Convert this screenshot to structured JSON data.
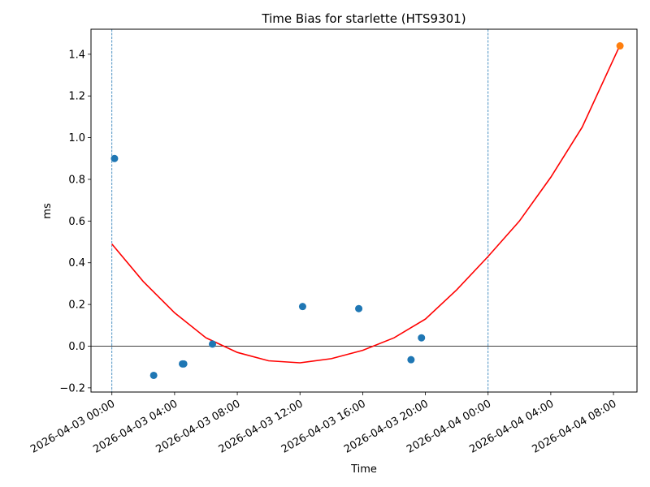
{
  "chart_data": {
    "type": "scatter",
    "title": "Time Bias for starlette (HTS9301)",
    "xlabel": "Time",
    "ylabel": "ms",
    "x_ticks": [
      "2026-04-03 00:00",
      "2026-04-03 04:00",
      "2026-04-03 08:00",
      "2026-04-03 12:00",
      "2026-04-03 16:00",
      "2026-04-03 20:00",
      "2026-04-04 00:00",
      "2026-04-04 04:00",
      "2026-04-04 08:00"
    ],
    "y_ticks": [
      "−0.2",
      "0.0",
      "0.2",
      "0.4",
      "0.6",
      "0.8",
      "1.0",
      "1.2",
      "1.4"
    ],
    "xlim": [
      "2026-04-02 22:40",
      "2026-04-04 09:30"
    ],
    "ylim": [
      -0.22,
      1.52
    ],
    "grid": false,
    "measured_points": [
      {
        "x": "2026-04-03 00:10",
        "y": 0.9
      },
      {
        "x": "2026-04-03 02:40",
        "y": -0.14
      },
      {
        "x": "2026-04-03 04:30",
        "y": -0.085
      },
      {
        "x": "2026-04-03 04:35",
        "y": -0.085
      },
      {
        "x": "2026-04-03 06:25",
        "y": 0.01
      },
      {
        "x": "2026-04-03 12:10",
        "y": 0.19
      },
      {
        "x": "2026-04-03 15:45",
        "y": 0.18
      },
      {
        "x": "2026-04-03 19:05",
        "y": -0.065
      },
      {
        "x": "2026-04-03 19:45",
        "y": 0.04
      }
    ],
    "predicted_points": [
      {
        "x": "2026-04-04 08:25",
        "y": 1.44
      }
    ],
    "fit_curve": [
      {
        "x": "2026-04-03 00:00",
        "y": 0.49
      },
      {
        "x": "2026-04-03 02:00",
        "y": 0.31
      },
      {
        "x": "2026-04-03 04:00",
        "y": 0.16
      },
      {
        "x": "2026-04-03 06:00",
        "y": 0.04
      },
      {
        "x": "2026-04-03 08:00",
        "y": -0.03
      },
      {
        "x": "2026-04-03 10:00",
        "y": -0.07
      },
      {
        "x": "2026-04-03 12:00",
        "y": -0.08
      },
      {
        "x": "2026-04-03 14:00",
        "y": -0.06
      },
      {
        "x": "2026-04-03 16:00",
        "y": -0.02
      },
      {
        "x": "2026-04-03 18:00",
        "y": 0.04
      },
      {
        "x": "2026-04-03 20:00",
        "y": 0.13
      },
      {
        "x": "2026-04-03 22:00",
        "y": 0.27
      },
      {
        "x": "2026-04-04 00:00",
        "y": 0.43
      },
      {
        "x": "2026-04-04 02:00",
        "y": 0.6
      },
      {
        "x": "2026-04-04 04:00",
        "y": 0.81
      },
      {
        "x": "2026-04-04 06:00",
        "y": 1.05
      },
      {
        "x": "2026-04-04 08:20",
        "y": 1.43
      }
    ],
    "vertical_lines": [
      "2026-04-03 00:00",
      "2026-04-04 00:00"
    ],
    "horizontal_line": 0.0,
    "colors": {
      "measured": "#1f77b4",
      "predicted": "#ff7f0e",
      "fit": "#ff0000",
      "vline": "#1f77b4",
      "hline": "#000000"
    }
  }
}
